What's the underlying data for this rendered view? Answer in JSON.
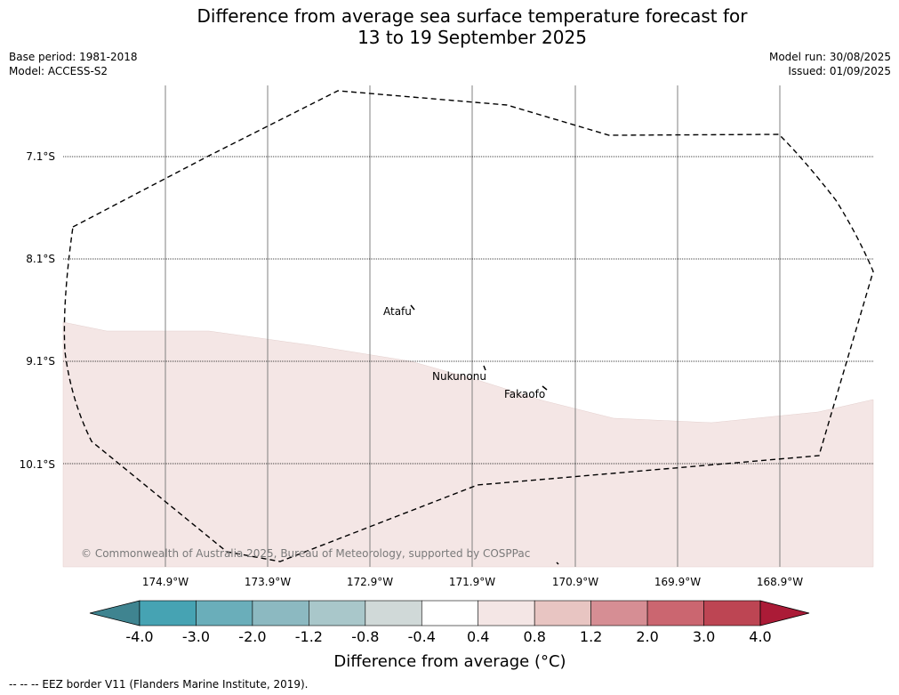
{
  "header": {
    "title_line1": "Difference from average sea surface temperature forecast for",
    "title_line2": "13 to 19 September 2025",
    "base_period": "Base period: 1981-2018",
    "model": "Model: ACCESS-S2",
    "model_run": "Model run: 30/08/2025",
    "issued": "Issued: 01/09/2025"
  },
  "map": {
    "latitude_labels": [
      "7.1°S",
      "8.1°S",
      "9.1°S",
      "10.1°S"
    ],
    "longitude_labels": [
      "174.9°W",
      "173.9°W",
      "172.9°W",
      "171.9°W",
      "170.9°W",
      "169.9°W",
      "168.9°W"
    ],
    "places": [
      "Atafu",
      "Nukunonu",
      "Fakaofo"
    ],
    "copyright": "© Commonwealth of Australia 2025, Bureau of Meteorology, supported by COSPPac",
    "anomaly_fill_upper": "#ffffff",
    "anomaly_fill_lower": "#f4e6e5"
  },
  "colorbar": {
    "title": "Difference from average (°C)",
    "ticks": [
      "-4.0",
      "-3.0",
      "-2.0",
      "-1.2",
      "-0.8",
      "-0.4",
      "0.4",
      "0.8",
      "1.2",
      "2.0",
      "3.0",
      "4.0"
    ],
    "colors": [
      "#3f8490",
      "#46a3b3",
      "#6aaeba",
      "#8cb9c1",
      "#a9c7ca",
      "#d0d9d8",
      "#ffffff",
      "#f4e6e5",
      "#e8c5c2",
      "#d68e94",
      "#cb6670",
      "#bd4553",
      "#ab1b37"
    ]
  },
  "footer": {
    "legend_text": "-- -- -- EEZ border V11 (Flanders Marine Institute, 2019)."
  }
}
